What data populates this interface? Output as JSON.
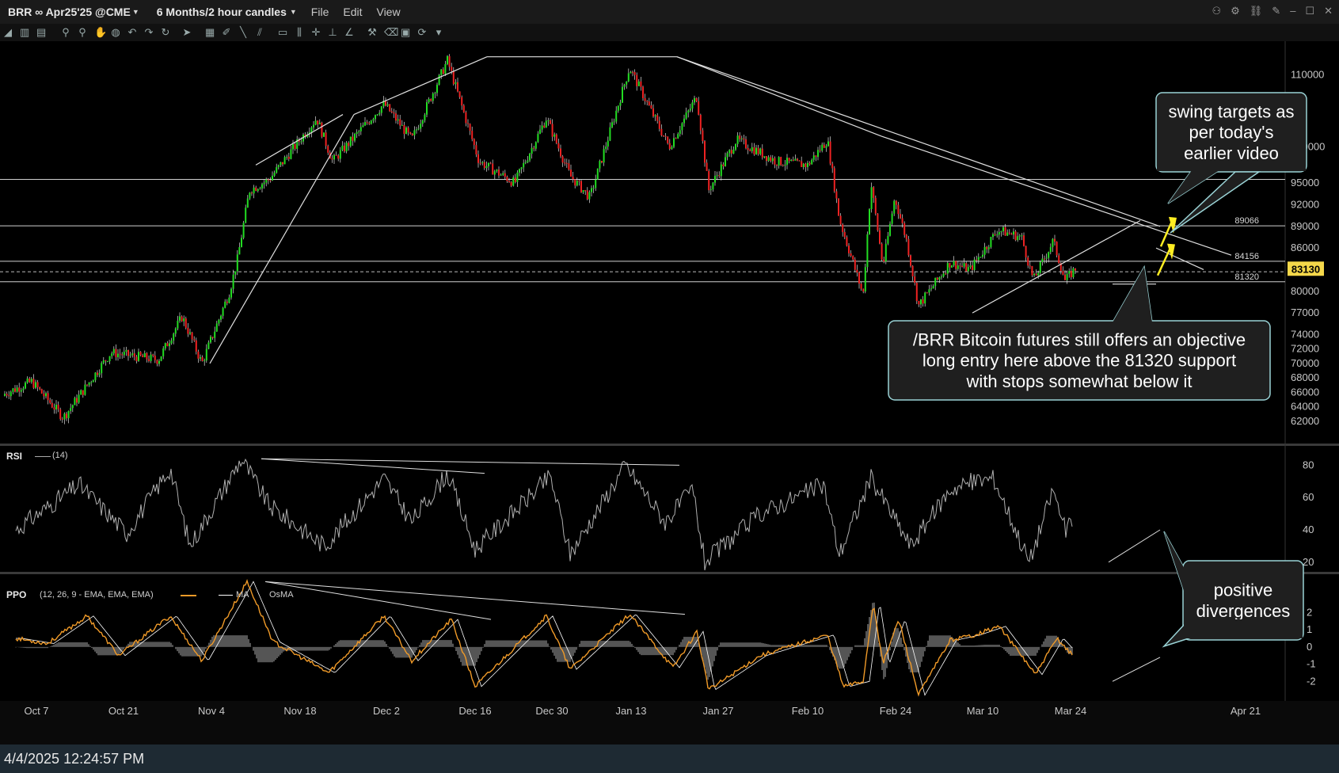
{
  "header": {
    "symbol": "BRR ∞ Apr25'25 @CME",
    "timeframe": "6 Months/2 hour candles",
    "menu": [
      "File",
      "Edit",
      "View"
    ]
  },
  "footer": {
    "timestamp": "4/4/2025 12:24:57 PM"
  },
  "colors": {
    "bull": "#22dd22",
    "bear": "#ee2222",
    "rsi": "#b0b0b0",
    "ppo": "#f09a28",
    "ma": "#ffffff",
    "osma": "#555555",
    "callout_border": "#9ad3d6",
    "callout_fill": "#1f1f1f",
    "price_label": "#f5d84a"
  },
  "chart_data": [
    {
      "type": "candlestick",
      "name": "price",
      "x_labels": [
        "Oct 7",
        "Oct 21",
        "Nov 4",
        "Nov 18",
        "Dec 2",
        "Dec 16",
        "Dec 30",
        "Jan 13",
        "Jan 27",
        "Feb 10",
        "Feb 24",
        "Mar 10",
        "Mar 24",
        "Apr 21"
      ],
      "y_ticks": [
        110000,
        100000,
        95000,
        92000,
        89000,
        86000,
        83000,
        80000,
        77000,
        74000,
        72000,
        70000,
        68000,
        66000,
        64000,
        62000
      ],
      "ylim": [
        60000,
        114000
      ],
      "last_price": 83130,
      "levels": [
        {
          "value": 95500,
          "label": ""
        },
        {
          "value": 89066,
          "label": "89066"
        },
        {
          "value": 84156,
          "label": "84156"
        },
        {
          "value": 81320,
          "label": "81320"
        },
        {
          "value": 82700,
          "label": "",
          "style": "dashed"
        }
      ],
      "path_anchors": [
        {
          "x": 0,
          "y": 65500
        },
        {
          "x": 40,
          "y": 67500
        },
        {
          "x": 80,
          "y": 62500
        },
        {
          "x": 140,
          "y": 71500
        },
        {
          "x": 200,
          "y": 70500
        },
        {
          "x": 230,
          "y": 76500
        },
        {
          "x": 255,
          "y": 70000
        },
        {
          "x": 290,
          "y": 80000
        },
        {
          "x": 300,
          "y": 84500
        },
        {
          "x": 315,
          "y": 94000
        },
        {
          "x": 340,
          "y": 95500
        },
        {
          "x": 400,
          "y": 104000
        },
        {
          "x": 420,
          "y": 98000
        },
        {
          "x": 485,
          "y": 106000
        },
        {
          "x": 520,
          "y": 101000
        },
        {
          "x": 565,
          "y": 112000
        },
        {
          "x": 605,
          "y": 98000
        },
        {
          "x": 650,
          "y": 95000
        },
        {
          "x": 690,
          "y": 104000
        },
        {
          "x": 720,
          "y": 96000
        },
        {
          "x": 745,
          "y": 93000
        },
        {
          "x": 770,
          "y": 102000
        },
        {
          "x": 795,
          "y": 111000
        },
        {
          "x": 845,
          "y": 100000
        },
        {
          "x": 880,
          "y": 107000
        },
        {
          "x": 895,
          "y": 94000
        },
        {
          "x": 930,
          "y": 101000
        },
        {
          "x": 980,
          "y": 98000
        },
        {
          "x": 1020,
          "y": 97500
        },
        {
          "x": 1045,
          "y": 101000
        },
        {
          "x": 1060,
          "y": 90000
        },
        {
          "x": 1090,
          "y": 79500
        },
        {
          "x": 1100,
          "y": 95000
        },
        {
          "x": 1115,
          "y": 83500
        },
        {
          "x": 1130,
          "y": 93000
        },
        {
          "x": 1145,
          "y": 87000
        },
        {
          "x": 1160,
          "y": 78000
        },
        {
          "x": 1200,
          "y": 84000
        },
        {
          "x": 1225,
          "y": 83000
        },
        {
          "x": 1260,
          "y": 88500
        },
        {
          "x": 1290,
          "y": 87500
        },
        {
          "x": 1305,
          "y": 81500
        },
        {
          "x": 1330,
          "y": 87000
        },
        {
          "x": 1345,
          "y": 81500
        },
        {
          "x": 1358,
          "y": 83130
        }
      ]
    },
    {
      "type": "line",
      "name": "RSI",
      "label": "RSI",
      "params": "(14)",
      "y_ticks": [
        80,
        60,
        40,
        20
      ],
      "ylim": [
        15,
        90
      ],
      "path_anchors": [
        {
          "x": 20,
          "y": 40
        },
        {
          "x": 100,
          "y": 68
        },
        {
          "x": 160,
          "y": 38
        },
        {
          "x": 215,
          "y": 78
        },
        {
          "x": 240,
          "y": 30
        },
        {
          "x": 305,
          "y": 84
        },
        {
          "x": 340,
          "y": 55
        },
        {
          "x": 410,
          "y": 30
        },
        {
          "x": 485,
          "y": 72
        },
        {
          "x": 520,
          "y": 45
        },
        {
          "x": 565,
          "y": 75
        },
        {
          "x": 600,
          "y": 28
        },
        {
          "x": 695,
          "y": 73
        },
        {
          "x": 720,
          "y": 25
        },
        {
          "x": 790,
          "y": 80
        },
        {
          "x": 840,
          "y": 45
        },
        {
          "x": 875,
          "y": 65
        },
        {
          "x": 890,
          "y": 20
        },
        {
          "x": 960,
          "y": 50
        },
        {
          "x": 1040,
          "y": 68
        },
        {
          "x": 1060,
          "y": 25
        },
        {
          "x": 1100,
          "y": 72
        },
        {
          "x": 1150,
          "y": 30
        },
        {
          "x": 1200,
          "y": 65
        },
        {
          "x": 1230,
          "y": 70
        },
        {
          "x": 1255,
          "y": 72
        },
        {
          "x": 1300,
          "y": 20
        },
        {
          "x": 1330,
          "y": 65
        },
        {
          "x": 1345,
          "y": 40
        },
        {
          "x": 1355,
          "y": 45
        }
      ]
    },
    {
      "type": "line",
      "name": "PPO",
      "label": "PPO",
      "params": "(12, 26, 9 - EMA, EMA, EMA)",
      "ma_label": "MA",
      "osma_label": "OsMA",
      "y_ticks": [
        2,
        1,
        0,
        -1,
        -2
      ],
      "ylim": [
        -3,
        4
      ],
      "path_anchors": [
        {
          "x": 20,
          "y": 0.5
        },
        {
          "x": 60,
          "y": 0.2
        },
        {
          "x": 110,
          "y": 1.8
        },
        {
          "x": 150,
          "y": -0.5
        },
        {
          "x": 215,
          "y": 1.8
        },
        {
          "x": 255,
          "y": -0.8
        },
        {
          "x": 312,
          "y": 3.8
        },
        {
          "x": 345,
          "y": 0.3
        },
        {
          "x": 415,
          "y": -1.5
        },
        {
          "x": 485,
          "y": 1.8
        },
        {
          "x": 520,
          "y": -0.8
        },
        {
          "x": 570,
          "y": 1.6
        },
        {
          "x": 600,
          "y": -2.3
        },
        {
          "x": 690,
          "y": 1.8
        },
        {
          "x": 720,
          "y": -1.3
        },
        {
          "x": 795,
          "y": 1.9
        },
        {
          "x": 850,
          "y": -1.2
        },
        {
          "x": 880,
          "y": 0.9
        },
        {
          "x": 895,
          "y": -2.5
        },
        {
          "x": 960,
          "y": -0.5
        },
        {
          "x": 1045,
          "y": 0.7
        },
        {
          "x": 1065,
          "y": -2.3
        },
        {
          "x": 1090,
          "y": -2.0
        },
        {
          "x": 1103,
          "y": 2.6
        },
        {
          "x": 1115,
          "y": -1.0
        },
        {
          "x": 1135,
          "y": 1.6
        },
        {
          "x": 1160,
          "y": -2.8
        },
        {
          "x": 1200,
          "y": 0.4
        },
        {
          "x": 1230,
          "y": 0.7
        },
        {
          "x": 1262,
          "y": 1.2
        },
        {
          "x": 1308,
          "y": -1.6
        },
        {
          "x": 1335,
          "y": 0.5
        },
        {
          "x": 1355,
          "y": -0.5
        }
      ]
    }
  ],
  "annotations": {
    "swing_targets": [
      "swing targets as",
      "per today's",
      "earlier video"
    ],
    "entry_note": [
      "/BRR Bitcoin futures still offers an objective",
      "long entry here above the 81320 support",
      "with stops somewhat below it"
    ],
    "divergence": [
      "positive",
      "divergences"
    ]
  }
}
